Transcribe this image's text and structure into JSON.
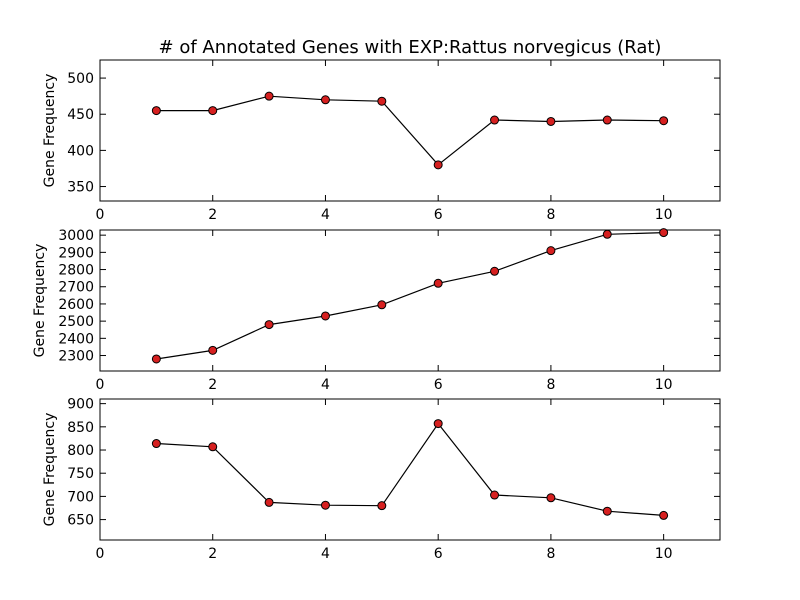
{
  "title": "# of Annotated Genes with EXP:Rattus norvegicus (Rat)",
  "colors": {
    "marker_fill": "#d62020",
    "line": "#000000"
  },
  "chart_data": [
    {
      "type": "line",
      "ylabel": "Gene Frequency",
      "xlim": [
        0,
        11
      ],
      "ylim": [
        330,
        525
      ],
      "xticks": [
        0,
        2,
        4,
        6,
        8,
        10
      ],
      "yticks": [
        350,
        400,
        450,
        500
      ],
      "x": [
        1,
        2,
        3,
        4,
        5,
        6,
        7,
        8,
        9,
        10
      ],
      "values": [
        455,
        455,
        475,
        470,
        468,
        380,
        442,
        440,
        442,
        441
      ]
    },
    {
      "type": "line",
      "ylabel": "Gene Frequency",
      "xlim": [
        0,
        11
      ],
      "ylim": [
        2210,
        3030
      ],
      "xticks": [
        0,
        2,
        4,
        6,
        8,
        10
      ],
      "yticks": [
        2300,
        2400,
        2500,
        2600,
        2700,
        2800,
        2900,
        3000
      ],
      "x": [
        1,
        2,
        3,
        4,
        5,
        6,
        7,
        8,
        9,
        10
      ],
      "values": [
        2280,
        2330,
        2480,
        2530,
        2595,
        2720,
        2790,
        2910,
        3005,
        3015
      ]
    },
    {
      "type": "line",
      "ylabel": "Gene Frequency",
      "xlim": [
        0,
        11
      ],
      "ylim": [
        606,
        910
      ],
      "xticks": [
        0,
        2,
        4,
        6,
        8,
        10
      ],
      "yticks": [
        650,
        700,
        750,
        800,
        850,
        900
      ],
      "x": [
        1,
        2,
        3,
        4,
        5,
        6,
        7,
        8,
        9,
        10
      ],
      "values": [
        814,
        807,
        687,
        681,
        680,
        857,
        703,
        697,
        668,
        659
      ]
    }
  ]
}
